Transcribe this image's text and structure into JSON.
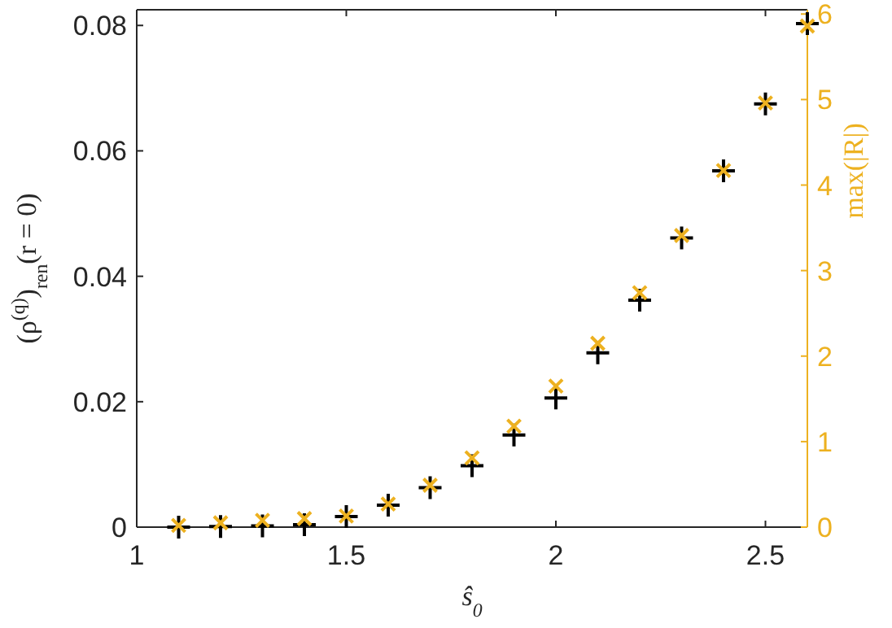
{
  "chart_data": {
    "type": "scatter",
    "x": [
      1.1,
      1.2,
      1.3,
      1.4,
      1.5,
      1.6,
      1.7,
      1.8,
      1.9,
      2.0,
      2.1,
      2.2,
      2.3,
      2.4,
      2.5,
      2.6
    ],
    "series": [
      {
        "color": "#000000",
        "marker": "cross",
        "values": [
          0,
          0.0001,
          0.0002,
          0.0004,
          0.0017,
          0.0035,
          0.0063,
          0.0098,
          0.0147,
          0.0206,
          0.0278,
          0.0362,
          0.0461,
          0.0568,
          0.0675,
          0.0803
        ]
      },
      {
        "color": "#edb120",
        "marker": "x",
        "axis": "y2",
        "values": [
          0.02,
          0.05,
          0.08,
          0.1,
          0.13,
          0.27,
          0.49,
          0.81,
          1.18,
          1.65,
          2.15,
          2.74,
          3.41,
          4.17,
          4.96,
          5.86
        ]
      }
    ],
    "xlabel": "ŝ$_{0}$",
    "ylabel": "(ρ$^{(q)}$)$_{ren}$(r = 0)",
    "y2label": "max(|R|)",
    "xlim": [
      1,
      2.6
    ],
    "xticks": [
      1,
      1.5,
      2,
      2.5
    ],
    "ylim": [
      0,
      0.0825
    ],
    "yticks": [
      0,
      0.02,
      0.04,
      0.06,
      0.08
    ],
    "y2lim": [
      0,
      6.05
    ],
    "y2ticks": [
      0,
      1,
      2,
      3,
      4,
      5,
      6
    ],
    "grid": false
  }
}
